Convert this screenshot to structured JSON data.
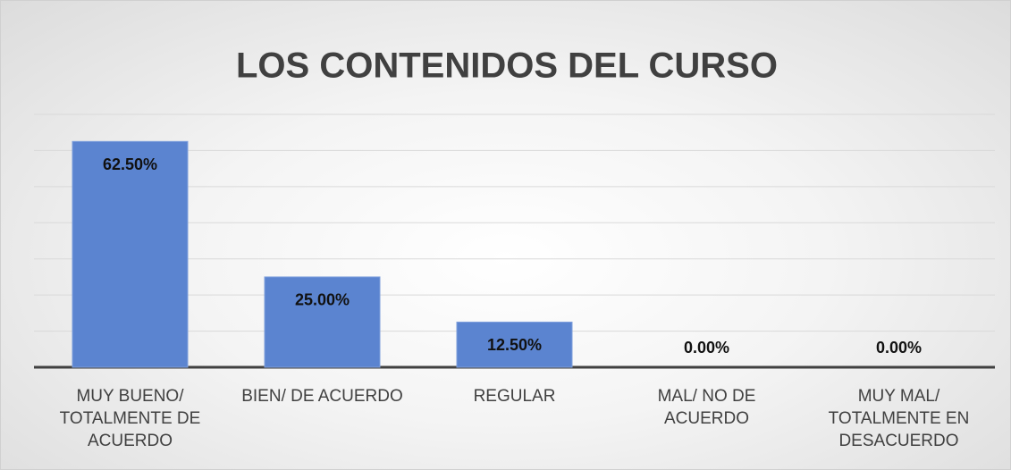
{
  "chart_data": {
    "type": "bar",
    "title": "LOS CONTENIDOS DEL CURSO",
    "categories": [
      "MUY BUENO/ TOTALMENTE DE ACUERDO",
      "BIEN/ DE ACUERDO",
      "REGULAR",
      "MAL/ NO DE ACUERDO",
      "MUY MAL/ TOTALMENTE EN DESACUERDO"
    ],
    "values": [
      62.5,
      25,
      12.5,
      0,
      0
    ],
    "value_labels": [
      "62.50%",
      "25.00%",
      "12.50%",
      "0.00%",
      "0.00%"
    ],
    "color": "#5b84d0",
    "ylim": [
      0,
      70
    ],
    "yticks": [
      0,
      10,
      20,
      30,
      40,
      50,
      60,
      70
    ],
    "grid": true
  }
}
